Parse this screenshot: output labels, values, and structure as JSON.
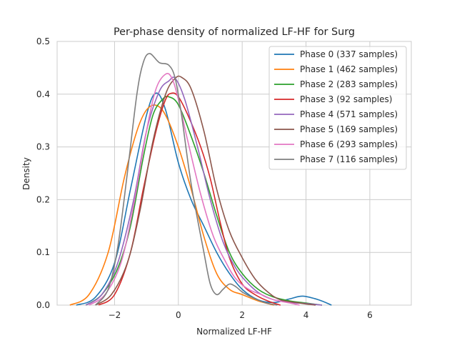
{
  "chart_data": {
    "type": "line",
    "title": "Per-phase density of normalized LF-HF for Surg",
    "xlabel": "Normalized LF-HF",
    "ylabel": "Density",
    "xlim": [
      -3.8,
      7.3
    ],
    "ylim": [
      0,
      0.5
    ],
    "xticks": [
      -2,
      0,
      2,
      4,
      6
    ],
    "xtick_labels": [
      "−2",
      "0",
      "2",
      "4",
      "6"
    ],
    "yticks": [
      0.0,
      0.1,
      0.2,
      0.3,
      0.4,
      0.5
    ],
    "ytick_labels": [
      "0.0",
      "0.1",
      "0.2",
      "0.3",
      "0.4",
      "0.5"
    ],
    "grid": true,
    "legend_position": "top-right",
    "series": [
      {
        "name": "Phase 0 (337 samples)",
        "color": "#1f77b4",
        "x": [
          -3.2,
          -2.6,
          -2.0,
          -1.5,
          -1.0,
          -0.7,
          -0.4,
          0.0,
          0.4,
          0.8,
          1.2,
          1.6,
          2.0,
          2.5,
          3.0,
          3.5,
          3.9,
          4.4,
          4.8
        ],
        "y": [
          0.0,
          0.015,
          0.08,
          0.22,
          0.36,
          0.402,
          0.37,
          0.27,
          0.2,
          0.15,
          0.1,
          0.06,
          0.03,
          0.01,
          0.005,
          0.012,
          0.017,
          0.01,
          0.0
        ]
      },
      {
        "name": "Phase 1 (462 samples)",
        "color": "#ff7f0e",
        "x": [
          -3.4,
          -2.8,
          -2.2,
          -1.7,
          -1.3,
          -1.0,
          -0.7,
          -0.4,
          0.0,
          0.4,
          0.8,
          1.2,
          1.6,
          2.0,
          2.5,
          3.0
        ],
        "y": [
          0.0,
          0.02,
          0.1,
          0.24,
          0.33,
          0.37,
          0.379,
          0.36,
          0.3,
          0.22,
          0.13,
          0.06,
          0.03,
          0.02,
          0.008,
          0.0
        ]
      },
      {
        "name": "Phase 2 (283 samples)",
        "color": "#2ca02c",
        "x": [
          -2.9,
          -2.4,
          -1.9,
          -1.5,
          -1.1,
          -0.8,
          -0.5,
          -0.3,
          0.0,
          0.4,
          0.8,
          1.2,
          1.6,
          2.0,
          2.5,
          3.0,
          3.5,
          4.0,
          4.5
        ],
        "y": [
          0.0,
          0.02,
          0.07,
          0.15,
          0.28,
          0.36,
          0.39,
          0.395,
          0.38,
          0.32,
          0.25,
          0.17,
          0.1,
          0.06,
          0.03,
          0.015,
          0.008,
          0.004,
          0.0
        ]
      },
      {
        "name": "Phase 3 (92 samples)",
        "color": "#d62728",
        "x": [
          -2.5,
          -2.0,
          -1.5,
          -1.1,
          -0.7,
          -0.4,
          -0.2,
          0.0,
          0.3,
          0.7,
          1.0,
          1.3,
          1.6,
          2.0,
          2.4,
          2.8,
          3.2
        ],
        "y": [
          0.0,
          0.02,
          0.1,
          0.22,
          0.33,
          0.39,
          0.402,
          0.395,
          0.36,
          0.3,
          0.24,
          0.16,
          0.09,
          0.04,
          0.02,
          0.008,
          0.0
        ]
      },
      {
        "name": "Phase 4 (571 samples)",
        "color": "#9467bd",
        "x": [
          -2.9,
          -2.4,
          -1.9,
          -1.4,
          -1.0,
          -0.6,
          -0.3,
          -0.1,
          0.2,
          0.6,
          1.0,
          1.4,
          1.8,
          2.2,
          2.6,
          3.0,
          3.5,
          4.0,
          4.5
        ],
        "y": [
          0.0,
          0.02,
          0.08,
          0.2,
          0.33,
          0.405,
          0.425,
          0.43,
          0.39,
          0.3,
          0.2,
          0.12,
          0.07,
          0.04,
          0.02,
          0.01,
          0.005,
          0.003,
          0.0
        ]
      },
      {
        "name": "Phase 5 (169 samples)",
        "color": "#8c564b",
        "x": [
          -2.6,
          -2.1,
          -1.6,
          -1.2,
          -0.8,
          -0.4,
          -0.1,
          0.1,
          0.4,
          0.8,
          1.2,
          1.6,
          2.0,
          2.4,
          2.8,
          3.2,
          3.8,
          4.3
        ],
        "y": [
          0.0,
          0.02,
          0.08,
          0.18,
          0.31,
          0.4,
          0.43,
          0.432,
          0.41,
          0.33,
          0.22,
          0.14,
          0.09,
          0.05,
          0.025,
          0.01,
          0.004,
          0.0
        ]
      },
      {
        "name": "Phase 6 (293 samples)",
        "color": "#e377c2",
        "x": [
          -2.8,
          -2.3,
          -1.8,
          -1.4,
          -1.0,
          -0.7,
          -0.4,
          -0.2,
          0.0,
          0.3,
          0.7,
          1.1,
          1.5,
          1.8,
          2.2,
          2.6,
          3.0,
          3.5,
          3.8
        ],
        "y": [
          0.0,
          0.02,
          0.08,
          0.19,
          0.33,
          0.41,
          0.438,
          0.43,
          0.39,
          0.31,
          0.21,
          0.13,
          0.08,
          0.05,
          0.03,
          0.02,
          0.01,
          0.004,
          0.0
        ]
      },
      {
        "name": "Phase 7 (116 samples)",
        "color": "#7f7f7f",
        "x": [
          -2.6,
          -2.2,
          -1.9,
          -1.6,
          -1.3,
          -1.1,
          -0.9,
          -0.6,
          -0.3,
          -0.1,
          0.1,
          0.4,
          0.8,
          1.0,
          1.2,
          1.4,
          1.6,
          1.8,
          2.0,
          2.3,
          2.7,
          3.1
        ],
        "y": [
          0.0,
          0.03,
          0.11,
          0.25,
          0.4,
          0.46,
          0.477,
          0.46,
          0.455,
          0.43,
          0.36,
          0.23,
          0.1,
          0.04,
          0.02,
          0.03,
          0.04,
          0.035,
          0.025,
          0.015,
          0.005,
          0.0
        ]
      }
    ]
  }
}
